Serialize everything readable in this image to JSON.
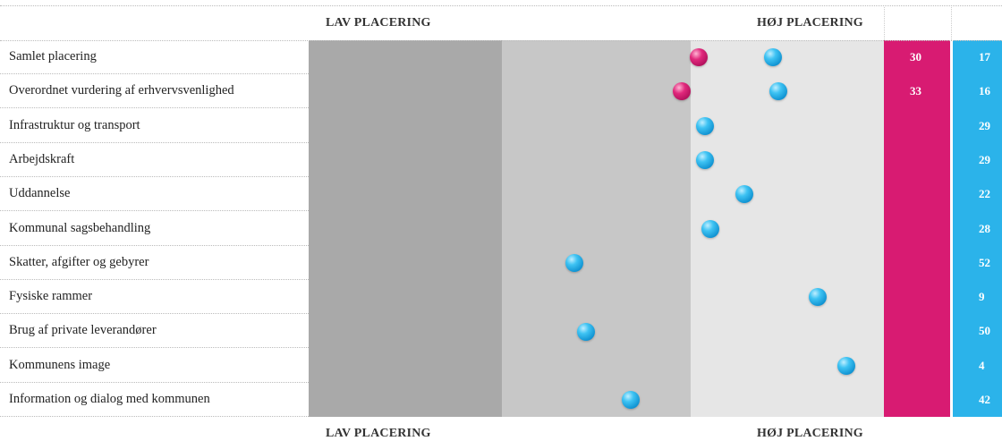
{
  "header": {
    "low_label": "LAV PLACERING",
    "high_label": "HØJ PLACERING"
  },
  "footer": {
    "low_label": "LAV PLACERING",
    "high_label": "HØJ PLACERING"
  },
  "colors": {
    "pink": "#d81b72",
    "blue": "#2bb3ea",
    "band_low": "#a9a9a9",
    "band_mid": "#c7c7c7",
    "band_high": "#e6e6e6"
  },
  "chart_data": {
    "type": "scatter",
    "title": "",
    "categories": [
      "Samlet placering",
      "Overordnet vurdering af erhvervsvenlighed",
      "Infrastruktur og transport",
      "Arbejdskraft",
      "Uddannelse",
      "Kommunal sagsbehandling",
      "Skatter, afgifter og gebyrer",
      "Fysiske rammer",
      "Brug af private leverandører",
      "Kommunens image",
      "Information og dialog med kommunen"
    ],
    "series": [
      {
        "color": "pink",
        "values": [
          "30",
          "33",
          "",
          "",
          "",
          "",
          "",
          "",
          "",
          "",
          ""
        ]
      },
      {
        "color": "blue",
        "values": [
          "17",
          "16",
          "29",
          "29",
          "22",
          "28",
          "52",
          "9",
          "50",
          "4",
          "42"
        ]
      }
    ]
  }
}
